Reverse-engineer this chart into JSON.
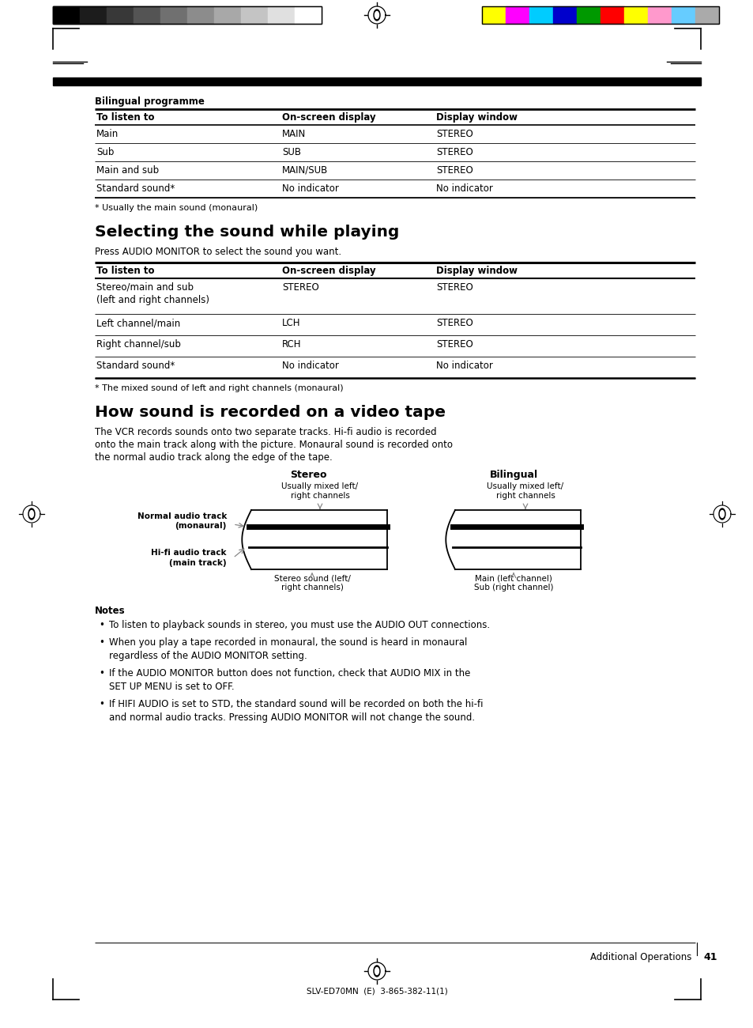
{
  "bg_color": "#ffffff",
  "page_num": "41",
  "section_footer": "Additional Operations",
  "bottom_text": "SLV-ED70MN  (E)  3-865-382-11(1)",
  "bilingual_label": "Bilingual programme",
  "table1_header": [
    "To listen to",
    "On-screen display",
    "Display window"
  ],
  "table1_rows": [
    [
      "Main",
      "MAIN",
      "STEREO"
    ],
    [
      "Sub",
      "SUB",
      "STEREO"
    ],
    [
      "Main and sub",
      "MAIN/SUB",
      "STEREO"
    ],
    [
      "Standard sound*",
      "No indicator",
      "No indicator"
    ]
  ],
  "table1_footnote": "* Usually the main sound (monaural)",
  "section1_title": "Selecting the sound while playing",
  "section1_body": "Press AUDIO MONITOR to select the sound you want.",
  "table2_header": [
    "To listen to",
    "On-screen display",
    "Display window"
  ],
  "table2_rows": [
    [
      "Stereo/main and sub\n(left and right channels)",
      "STEREO",
      "STEREO"
    ],
    [
      "Left channel/main",
      "LCH",
      "STEREO"
    ],
    [
      "Right channel/sub",
      "RCH",
      "STEREO"
    ],
    [
      "Standard sound*",
      "No indicator",
      "No indicator"
    ]
  ],
  "table2_footnote": "* The mixed sound of left and right channels (monaural)",
  "section2_title": "How sound is recorded on a video tape",
  "section2_body1": "The VCR records sounds onto two separate tracks. Hi-fi audio is recorded",
  "section2_body2": "onto the main track along with the picture. Monaural sound is recorded onto",
  "section2_body3": "the normal audio track along the edge of the tape.",
  "stereo_label": "Stereo",
  "bilingual_label2": "Bilingual",
  "normal_audio_label": "Normal audio track\n(monaural)",
  "hifi_audio_label": "Hi-fi audio track\n(main track)",
  "stereo_top_label": "Usually mixed left/\nright channels",
  "stereo_bottom_label": "Stereo sound (left/\nright channels)",
  "bilingual_top_label": "Usually mixed left/\nright channels",
  "bilingual_bottom_label": "Main (left channel)\nSub (right channel)",
  "notes_title": "Notes",
  "notes": [
    "To listen to playback sounds in stereo, you must use the AUDIO OUT connections.",
    "When you play a tape recorded in monaural, the sound is heard in monaural\nregardless of the AUDIO MONITOR setting.",
    "If the AUDIO MONITOR button does not function, check that AUDIO MIX in the\nSET UP MENU is set to OFF.",
    "If HIFI AUDIO is set to STD, the standard sound will be recorded on both the hi-fi\nand normal audio tracks. Pressing AUDIO MONITOR will not change the sound."
  ],
  "gray_colors": [
    "#000000",
    "#1c1c1c",
    "#383838",
    "#545454",
    "#707070",
    "#8c8c8c",
    "#a8a8a8",
    "#c4c4c4",
    "#e0e0e0",
    "#ffffff"
  ],
  "color_strip": [
    "#ffff00",
    "#ff00ff",
    "#00ccff",
    "#0000cc",
    "#009900",
    "#ff0000",
    "#ffff00",
    "#ff99cc",
    "#66ccff",
    "#aaaaaa"
  ]
}
